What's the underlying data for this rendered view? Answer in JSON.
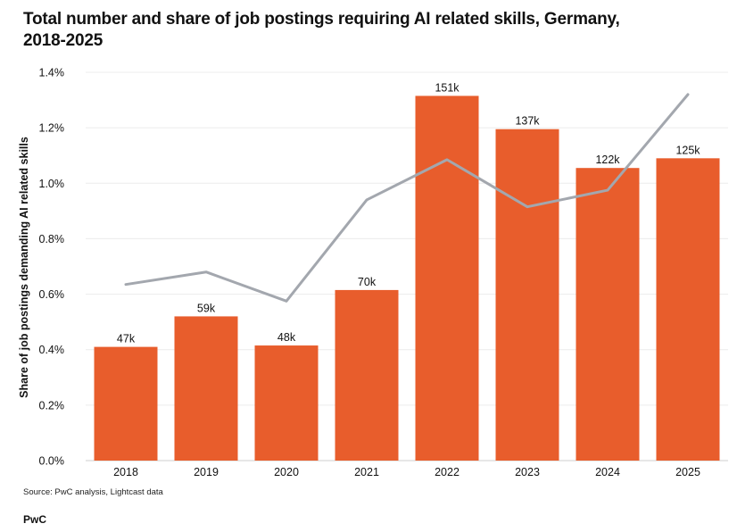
{
  "title_line1": "Total number and share of job postings requiring AI related skills, Germany,",
  "title_line2": "2018-2025",
  "source": "Source: PwC analysis, Lightcast data",
  "brand": "PwC",
  "chart_data": {
    "type": "bar",
    "title": "Total number and share of job postings requiring AI related skills, Germany, 2018-2025",
    "xlabel": "",
    "ylabel": "Share of job postings demanding AI related skills",
    "categories": [
      "2018",
      "2019",
      "2020",
      "2021",
      "2022",
      "2023",
      "2024",
      "2025"
    ],
    "ylim": [
      0,
      1.4
    ],
    "yticks": [
      "0.0%",
      "0.2%",
      "0.4%",
      "0.6%",
      "0.8%",
      "1.0%",
      "1.2%",
      "1.4%"
    ],
    "grid": true,
    "series": [
      {
        "type": "bar",
        "values": [
          0.41,
          0.52,
          0.415,
          0.615,
          1.315,
          1.195,
          1.055,
          1.09
        ],
        "labels": [
          "47k",
          "59k",
          "48k",
          "70k",
          "151k",
          "137k",
          "122k",
          "125k"
        ],
        "color": "#e85d2c"
      },
      {
        "type": "line",
        "values": [
          0.635,
          0.68,
          0.575,
          0.94,
          1.085,
          0.915,
          0.975,
          1.32
        ],
        "color": "#a3a7ae"
      }
    ]
  }
}
